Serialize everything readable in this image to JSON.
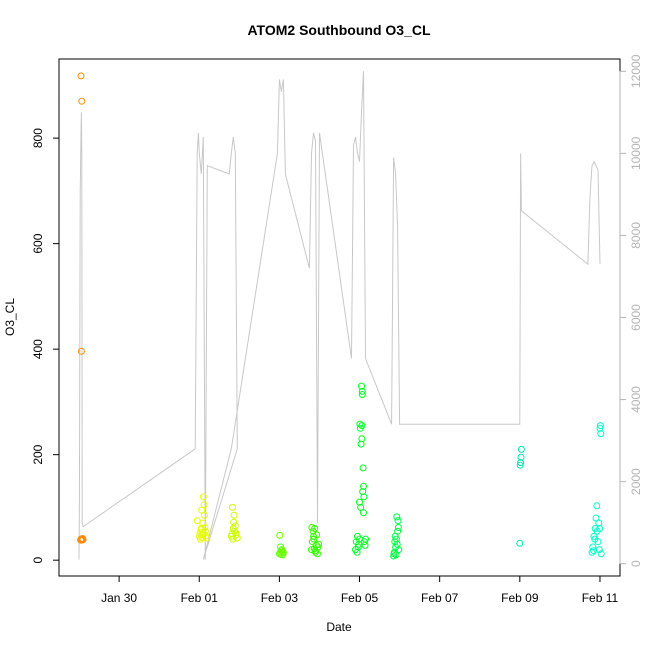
{
  "chart_data": {
    "type": "scatter",
    "title": "ATOM2 Southbound O3_CL",
    "xlabel": "Date",
    "ylabel": "O3_CL",
    "x_ticks": [
      "Jan 30",
      "Feb 01",
      "Feb 03",
      "Feb 05",
      "Feb 07",
      "Feb 09",
      "Feb 11"
    ],
    "x_ticks_day": [
      -2,
      0,
      2,
      4,
      6,
      8,
      10
    ],
    "xlim_day": [
      -3.5,
      10.5
    ],
    "ylim": [
      -30,
      950
    ],
    "y_ticks": [
      0,
      200,
      400,
      600,
      800
    ],
    "y2lim": [
      -300,
      12300
    ],
    "y2_ticks": [
      0,
      2000,
      4000,
      6000,
      8000,
      10000,
      12000
    ],
    "grid": false,
    "legend": "none",
    "point_series": [
      {
        "color": "#ff8c00",
        "points": [
          [
            -2.95,
            40
          ],
          [
            -2.93,
            38
          ],
          [
            -2.92,
            40
          ],
          [
            -2.9,
            39
          ],
          [
            -2.93,
            870
          ],
          [
            -2.95,
            918
          ],
          [
            -2.94,
            396
          ],
          [
            -2.91,
            41
          ],
          [
            -2.96,
            38
          ]
        ]
      },
      {
        "color": "#e6ff00",
        "points": [
          [
            0.0,
            45
          ],
          [
            0.02,
            52
          ],
          [
            0.05,
            60
          ],
          [
            0.08,
            48
          ],
          [
            0.1,
            120
          ],
          [
            0.12,
            105
          ],
          [
            0.06,
            95
          ],
          [
            0.15,
            55
          ],
          [
            0.18,
            42
          ],
          [
            0.09,
            70
          ],
          [
            0.03,
            40
          ],
          [
            0.14,
            62
          ],
          [
            -0.05,
            75
          ],
          [
            0.11,
            50
          ],
          [
            0.16,
            46
          ],
          [
            0.04,
            58
          ],
          [
            0.13,
            85
          ],
          [
            0.07,
            43
          ]
        ]
      },
      {
        "color": "#ccff00",
        "points": [
          [
            0.8,
            45
          ],
          [
            0.82,
            50
          ],
          [
            0.85,
            60
          ],
          [
            0.88,
            55
          ],
          [
            0.9,
            65
          ],
          [
            0.83,
            100
          ],
          [
            0.87,
            85
          ],
          [
            0.92,
            48
          ],
          [
            0.95,
            42
          ],
          [
            0.86,
            72
          ],
          [
            0.91,
            52
          ],
          [
            0.84,
            40
          ]
        ]
      },
      {
        "color": "#66ff00",
        "points": [
          [
            2.0,
            12
          ],
          [
            2.02,
            15
          ],
          [
            2.05,
            18
          ],
          [
            2.08,
            10
          ],
          [
            2.1,
            14
          ],
          [
            2.03,
            25
          ],
          [
            2.06,
            20
          ],
          [
            2.01,
            47
          ],
          [
            2.09,
            16
          ],
          [
            2.04,
            11
          ]
        ]
      },
      {
        "color": "#33ff00",
        "points": [
          [
            2.8,
            20
          ],
          [
            2.82,
            35
          ],
          [
            2.85,
            45
          ],
          [
            2.88,
            60
          ],
          [
            2.9,
            15
          ],
          [
            2.92,
            28
          ],
          [
            2.84,
            55
          ],
          [
            2.86,
            40
          ],
          [
            2.95,
            12
          ],
          [
            2.98,
            30
          ],
          [
            2.87,
            22
          ],
          [
            2.93,
            48
          ],
          [
            2.81,
            62
          ],
          [
            2.89,
            18
          ],
          [
            2.96,
            25
          ]
        ]
      },
      {
        "color": "#00ff22",
        "points": [
          [
            3.9,
            20
          ],
          [
            3.92,
            35
          ],
          [
            3.95,
            45
          ],
          [
            3.98,
            30
          ],
          [
            4.0,
            40
          ],
          [
            4.02,
            250
          ],
          [
            4.05,
            330
          ],
          [
            4.07,
            320
          ],
          [
            4.04,
            220
          ],
          [
            4.06,
            230
          ],
          [
            4.08,
            130
          ],
          [
            4.1,
            140
          ],
          [
            4.03,
            100
          ],
          [
            4.09,
            175
          ],
          [
            4.01,
            258
          ],
          [
            4.11,
            120
          ],
          [
            4.12,
            35
          ],
          [
            4.15,
            40
          ],
          [
            3.94,
            15
          ],
          [
            4.06,
            255
          ],
          [
            4.07,
            314
          ],
          [
            4.1,
            90
          ],
          [
            3.97,
            25
          ],
          [
            4.0,
            110
          ],
          [
            4.14,
            28
          ]
        ]
      },
      {
        "color": "#00ff44",
        "points": [
          [
            4.85,
            8
          ],
          [
            4.87,
            15
          ],
          [
            4.9,
            25
          ],
          [
            4.92,
            40
          ],
          [
            4.95,
            55
          ],
          [
            4.93,
            82
          ],
          [
            4.96,
            75
          ],
          [
            4.88,
            35
          ],
          [
            4.91,
            10
          ],
          [
            4.98,
            20
          ],
          [
            4.89,
            45
          ],
          [
            4.94,
            30
          ],
          [
            4.97,
            62
          ],
          [
            4.86,
            12
          ]
        ]
      },
      {
        "color": "#00e6aa",
        "points": [
          [
            8.0,
            32
          ],
          [
            8.02,
            185
          ],
          [
            8.04,
            210
          ],
          [
            8.03,
            195
          ],
          [
            8.01,
            180
          ]
        ]
      },
      {
        "color": "#00ffcc",
        "points": [
          [
            9.8,
            15
          ],
          [
            9.82,
            25
          ],
          [
            9.85,
            45
          ],
          [
            9.88,
            60
          ],
          [
            9.9,
            80
          ],
          [
            9.92,
            103
          ],
          [
            9.95,
            35
          ],
          [
            9.98,
            20
          ],
          [
            10.0,
            250
          ],
          [
            10.02,
            240
          ],
          [
            10.01,
            255
          ],
          [
            9.97,
            70
          ],
          [
            9.93,
            55
          ],
          [
            9.87,
            40
          ],
          [
            9.84,
            18
          ],
          [
            10.03,
            12
          ],
          [
            9.99,
            60
          ]
        ]
      }
    ],
    "line_series": {
      "color": "#c8c8c8",
      "axis": "right",
      "points": [
        [
          -3.0,
          100
        ],
        [
          -2.99,
          1400
        ],
        [
          -2.97,
          9000
        ],
        [
          -2.95,
          10500
        ],
        [
          -2.94,
          11000
        ],
        [
          -2.93,
          10000
        ],
        [
          -2.92,
          1000
        ],
        [
          -2.9,
          900
        ],
        [
          -0.1,
          2800
        ],
        [
          -0.05,
          10000
        ],
        [
          -0.02,
          10500
        ],
        [
          0.0,
          10000
        ],
        [
          0.05,
          9500
        ],
        [
          0.1,
          10400
        ],
        [
          0.15,
          100
        ],
        [
          0.2,
          9700
        ],
        [
          0.75,
          9500
        ],
        [
          0.8,
          10000
        ],
        [
          0.85,
          10400
        ],
        [
          0.9,
          10000
        ],
        [
          0.95,
          2800
        ],
        [
          0.1,
          100
        ],
        [
          0.8,
          2800
        ],
        [
          1.95,
          10000
        ],
        [
          2.0,
          11800
        ],
        [
          2.05,
          11500
        ],
        [
          2.1,
          11800
        ],
        [
          2.15,
          9500
        ],
        [
          2.2,
          9300
        ],
        [
          2.75,
          7200
        ],
        [
          2.8,
          10000
        ],
        [
          2.85,
          10500
        ],
        [
          2.9,
          10300
        ],
        [
          2.95,
          1000
        ],
        [
          3.0,
          10500
        ],
        [
          3.8,
          5000
        ],
        [
          3.85,
          10200
        ],
        [
          3.9,
          10400
        ],
        [
          3.95,
          10000
        ],
        [
          4.0,
          9800
        ],
        [
          4.05,
          11000
        ],
        [
          4.1,
          12000
        ],
        [
          4.15,
          5000
        ],
        [
          4.8,
          3400
        ],
        [
          4.85,
          9900
        ],
        [
          4.9,
          9500
        ],
        [
          4.95,
          8200
        ],
        [
          5.0,
          3400
        ],
        [
          8.0,
          3400
        ],
        [
          8.02,
          10000
        ],
        [
          8.04,
          8600
        ],
        [
          9.7,
          7300
        ],
        [
          9.75,
          8900
        ],
        [
          9.8,
          9700
        ],
        [
          9.85,
          9800
        ],
        [
          9.9,
          9700
        ],
        [
          9.95,
          9600
        ],
        [
          10.0,
          7300
        ]
      ]
    }
  }
}
